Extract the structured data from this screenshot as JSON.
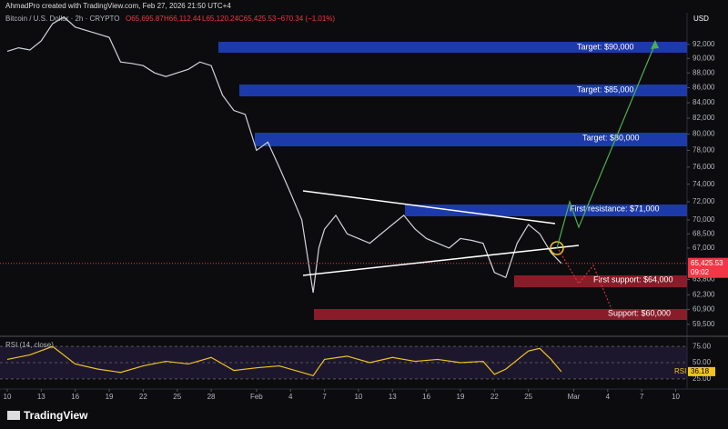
{
  "header": {
    "credit": "AhmadPro created with TradingView.com, Feb 27, 2026 21:50 UTC+4",
    "symbol": "Bitcoin / U.S. Dollar · 2h · CRYPTO",
    "open": "O65,695.87",
    "high": "H66,112.44",
    "low": "L65,120.24",
    "close": "C65,425.53",
    "change": "−670.34 (−1.01%)",
    "brand": "TradingView"
  },
  "chart_data": {
    "type": "line",
    "currency": "USD",
    "log_scale": true,
    "color": "#d1d4dc",
    "x": [
      0,
      1,
      2,
      3,
      4,
      5,
      6,
      8,
      9,
      10,
      11,
      12,
      13,
      14,
      15,
      16,
      17,
      18,
      19,
      20,
      21,
      22,
      23,
      24,
      25,
      26,
      27,
      27.5,
      28,
      29,
      30,
      31,
      32,
      33,
      34,
      35,
      36,
      37,
      38,
      39,
      40,
      41,
      42,
      43,
      44,
      45,
      46,
      47,
      48,
      48.9
    ],
    "values": [
      91000,
      91500,
      91200,
      92500,
      95000,
      96000,
      94500,
      93500,
      93000,
      89500,
      89300,
      89000,
      88000,
      87500,
      88000,
      88500,
      89500,
      89000,
      85000,
      83000,
      82500,
      78000,
      79000,
      76000,
      73000,
      70000,
      62500,
      67000,
      69000,
      70500,
      68500,
      68000,
      67500,
      68500,
      69500,
      70500,
      69000,
      68000,
      67500,
      67000,
      68000,
      67800,
      67500,
      64500,
      64000,
      67500,
      69500,
      68500,
      66500,
      65425.53
    ],
    "xlim": [
      -0.64,
      60
    ],
    "xticks": [
      {
        "value": 0,
        "label": "10"
      },
      {
        "value": 3,
        "label": "13"
      },
      {
        "value": 6,
        "label": "16"
      },
      {
        "value": 9,
        "label": "19"
      },
      {
        "value": 12,
        "label": "22"
      },
      {
        "value": 15,
        "label": "25"
      },
      {
        "value": 18,
        "label": "28"
      },
      {
        "value": 22,
        "label": "Feb"
      },
      {
        "value": 25,
        "label": "4"
      },
      {
        "value": 28,
        "label": "7"
      },
      {
        "value": 31,
        "label": "10"
      },
      {
        "value": 34,
        "label": "13"
      },
      {
        "value": 37,
        "label": "16"
      },
      {
        "value": 40,
        "label": "19"
      },
      {
        "value": 43,
        "label": "22"
      },
      {
        "value": 46,
        "label": "25"
      },
      {
        "value": 50,
        "label": "Mar"
      },
      {
        "value": 53,
        "label": "4"
      },
      {
        "value": 56,
        "label": "7"
      },
      {
        "value": 59,
        "label": "10"
      }
    ],
    "ylim": [
      58400,
      96500
    ],
    "yticks": [
      {
        "value": 92000,
        "label": "92,000"
      },
      {
        "value": 90000,
        "label": "90,000"
      },
      {
        "value": 88000,
        "label": "88,000"
      },
      {
        "value": 86000,
        "label": "86,000"
      },
      {
        "value": 84000,
        "label": "84,000"
      },
      {
        "value": 82000,
        "label": "82,000"
      },
      {
        "value": 80000,
        "label": "80,000"
      },
      {
        "value": 78000,
        "label": "78,000"
      },
      {
        "value": 76000,
        "label": "76,000"
      },
      {
        "value": 74000,
        "label": "74,000"
      },
      {
        "value": 72000,
        "label": "72,000"
      },
      {
        "value": 70000,
        "label": "70,000"
      },
      {
        "value": 68500,
        "label": "68,500"
      },
      {
        "value": 67000,
        "label": "67,000"
      },
      {
        "value": 63800,
        "label": "63,800"
      },
      {
        "value": 62300,
        "label": "62,300"
      },
      {
        "value": 60900,
        "label": "60,900"
      },
      {
        "value": 59500,
        "label": "59,500"
      }
    ],
    "last_price": {
      "value": 65425.53,
      "label": "65,425.53"
    },
    "countdown": "09:02",
    "annotations": [
      "Target: $90,000",
      "Target: $85,000",
      "Target: $80,000",
      "First resistance: $71,000",
      "First support: $64,000",
      "Support: $60,000"
    ],
    "rsi": {
      "title": "RSI (14, close)",
      "name": "RSI",
      "color": "#f0c419",
      "last": {
        "value": 36.18,
        "label": "36.18"
      },
      "x": [
        0,
        2,
        4,
        6,
        8,
        10,
        12,
        14,
        16,
        18,
        20,
        22,
        24,
        26,
        27,
        28,
        30,
        32,
        34,
        36,
        38,
        40,
        42,
        43,
        44,
        46,
        47,
        48,
        48.9
      ],
      "values": [
        55,
        62,
        75,
        48,
        40,
        35,
        45,
        52,
        48,
        58,
        38,
        42,
        45,
        35,
        30,
        55,
        60,
        50,
        58,
        52,
        55,
        50,
        52,
        32,
        40,
        68,
        72,
        55,
        36.18
      ],
      "ylim": [
        15,
        85
      ],
      "yticks": [
        {
          "value": 75,
          "label": "75.00"
        },
        {
          "value": 50,
          "label": "50.00"
        },
        {
          "value": 25,
          "label": "25.00"
        }
      ]
    }
  }
}
